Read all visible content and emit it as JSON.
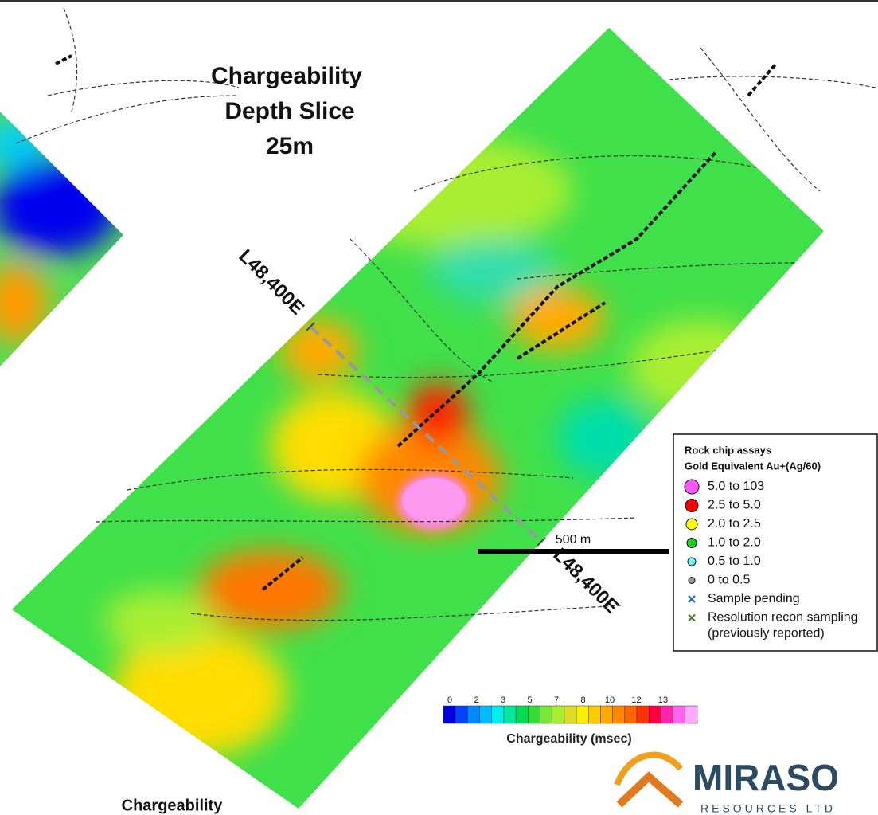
{
  "title_lines": [
    "Chargeability",
    "Depth Slice",
    "25m"
  ],
  "section_labels": [
    "L48,400E",
    "L48,400E"
  ],
  "legend": {
    "title": "Rock chip assays",
    "subtitle": "Gold Equivalent Au+(Ag/60)",
    "items": [
      {
        "label": "5.0 to 103",
        "color": "#ff55ff",
        "marker": "circle"
      },
      {
        "label": "2.5 to 5.0",
        "color": "#ff0000",
        "marker": "circle"
      },
      {
        "label": "2.0 to 2.5",
        "color": "#ffff00",
        "marker": "circle"
      },
      {
        "label": "1.0 to 2.0",
        "color": "#22cc22",
        "marker": "circle"
      },
      {
        "label": "0.5 to 1.0",
        "color": "#66ffff",
        "marker": "circle"
      },
      {
        "label": "0   to 0.5",
        "color": "#999999",
        "marker": "circle"
      },
      {
        "label": "Sample pending",
        "color": "#1f5fbf",
        "marker": "x"
      },
      {
        "label": "Resolution recon sampling",
        "label2": "(previously reported)",
        "color": "#4a7a2a",
        "marker": "x"
      }
    ]
  },
  "scale_bar": {
    "label": "500 m"
  },
  "colorbar": {
    "title": "Chargeability (msec)",
    "ticks": [
      0,
      2,
      3,
      5,
      7,
      8,
      10,
      12,
      13
    ],
    "colors": [
      "#0000e0",
      "#0044ff",
      "#0088ff",
      "#00bbff",
      "#00eeee",
      "#00e8a0",
      "#00dd55",
      "#33dd33",
      "#77e833",
      "#aaee33",
      "#dddd22",
      "#ffee00",
      "#ffcc00",
      "#ffaa00",
      "#ff8800",
      "#ff6600",
      "#ff3300",
      "#ff0044",
      "#ff22aa",
      "#ff66ee",
      "#ffaaff"
    ]
  },
  "logo": {
    "name": "MIRASO",
    "tagline": "RESOURCES LTD"
  },
  "inset_label": "Chargeability"
}
